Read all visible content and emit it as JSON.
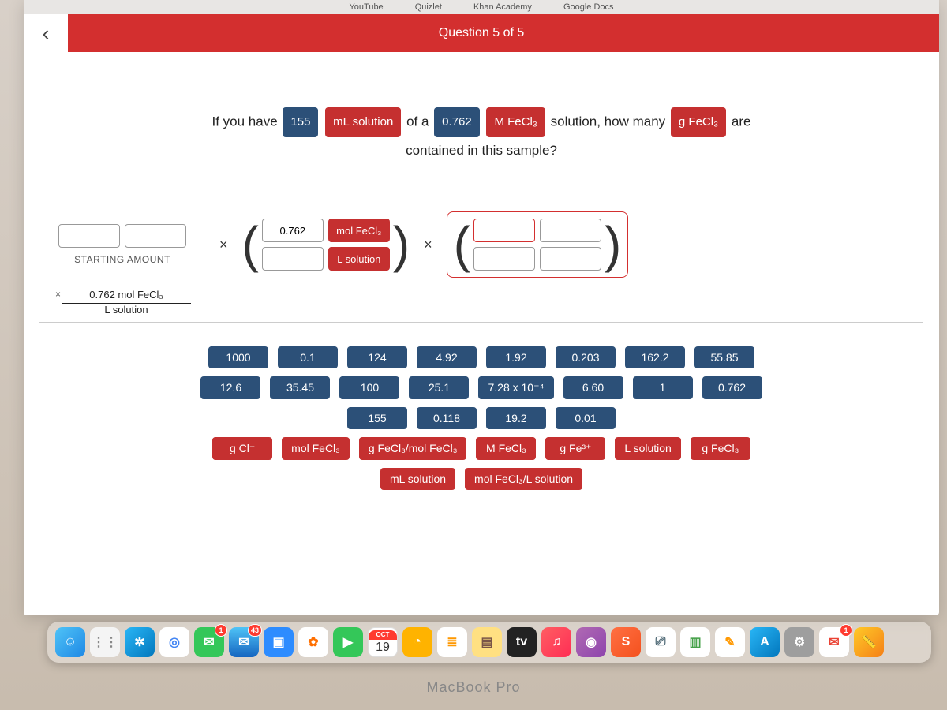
{
  "browser_tabs": [
    "YouTube",
    "Quizlet",
    "Khan Academy",
    "Google Docs"
  ],
  "header": {
    "title": "Question 5 of 5",
    "bg": "#d32f2f"
  },
  "question": {
    "pre1": "If you have",
    "val1": "155",
    "unit1": "mL solution",
    "mid1": "of a",
    "val2": "0.762",
    "unit2": "M FeCl₃",
    "mid2": "solution, how many",
    "unit3": "g FeCl₃",
    "post": "are",
    "line2": "contained in this sample?"
  },
  "start_label": "STARTING AMOUNT",
  "frac1": {
    "top_val": "0.762",
    "top_unit": "mol FeCl₃",
    "bot_unit": "L solution"
  },
  "applied": {
    "top": "0.762 mol FeCl₃",
    "bot": "L solution"
  },
  "bank": {
    "numbers": [
      [
        "1000",
        "0.1",
        "124",
        "4.92",
        "1.92",
        "0.203",
        "162.2",
        "55.85"
      ],
      [
        "12.6",
        "35.45",
        "100",
        "25.1",
        "7.28 x 10⁻⁴",
        "6.60",
        "1",
        "0.762"
      ],
      [
        "155",
        "0.118",
        "19.2",
        "0.01"
      ]
    ],
    "units_row1": [
      "g Cl⁻",
      "mol FeCl₃",
      "g FeCl₃/mol FeCl₃",
      "M FeCl₃",
      "g Fe³⁺",
      "L solution",
      "g FeCl₃"
    ],
    "units_row2": [
      "mL solution",
      "mol FeCl₃/L solution"
    ]
  },
  "colors": {
    "navy": "#2c5078",
    "red": "#c53030"
  },
  "dock": {
    "calendar": {
      "month": "OCT",
      "day": "19"
    },
    "mail_badge": "43",
    "chat_badge": "1",
    "items": [
      {
        "name": "finder",
        "bg": "linear-gradient(135deg,#4fc3f7,#1e88e5)",
        "glyph": "☺"
      },
      {
        "name": "launchpad",
        "bg": "#f4f4f4",
        "glyph": "⋮⋮",
        "color": "#888"
      },
      {
        "name": "safari",
        "bg": "linear-gradient(135deg,#29b6f6,#0277bd)",
        "glyph": "✲"
      },
      {
        "name": "chrome",
        "bg": "#fff",
        "glyph": "◎",
        "color": "#4285f4"
      },
      {
        "name": "messages",
        "bg": "#34c759",
        "glyph": "✉",
        "badge": "1"
      },
      {
        "name": "mail",
        "bg": "linear-gradient(180deg,#4fc3f7,#1565c0)",
        "glyph": "✉",
        "badge": "43"
      },
      {
        "name": "zoom",
        "bg": "#2d8cff",
        "glyph": "▣"
      },
      {
        "name": "photos",
        "bg": "#fff",
        "glyph": "✿",
        "color": "#ff6f00"
      },
      {
        "name": "facetime",
        "bg": "#34c759",
        "glyph": "▶"
      },
      {
        "name": "calendar",
        "calendar": true
      },
      {
        "name": "clock",
        "bg": "#ffb300",
        "glyph": "◔"
      },
      {
        "name": "reminders",
        "bg": "#fff",
        "glyph": "≣",
        "color": "#ff9800"
      },
      {
        "name": "notes",
        "bg": "#ffe082",
        "glyph": "▤",
        "color": "#795548"
      },
      {
        "name": "appletv",
        "bg": "#222",
        "glyph": "tv"
      },
      {
        "name": "music",
        "bg": "linear-gradient(135deg,#ff5e62,#ff2d55)",
        "glyph": "♫"
      },
      {
        "name": "podcasts",
        "bg": "linear-gradient(135deg,#b06ab3,#8e44ad)",
        "glyph": "◉"
      },
      {
        "name": "shortcuts",
        "bg": "linear-gradient(135deg,#ff7043,#f4511e)",
        "glyph": "S"
      },
      {
        "name": "keynote",
        "bg": "#fff",
        "glyph": "⎚",
        "color": "#546e7a"
      },
      {
        "name": "numbers",
        "bg": "#fff",
        "glyph": "▥",
        "color": "#43a047"
      },
      {
        "name": "pages",
        "bg": "#fff",
        "glyph": "✎",
        "color": "#ff9800"
      },
      {
        "name": "appstore",
        "bg": "linear-gradient(135deg,#29b6f6,#0277bd)",
        "glyph": "A"
      },
      {
        "name": "settings",
        "bg": "#9e9e9e",
        "glyph": "⚙"
      },
      {
        "name": "gmail",
        "bg": "#fff",
        "glyph": "✉",
        "color": "#ea4335",
        "badge": "1"
      },
      {
        "name": "measure",
        "bg": "linear-gradient(135deg,#ffca28,#f57f17)",
        "glyph": "📏"
      }
    ]
  },
  "mac_label": "MacBook Pro"
}
